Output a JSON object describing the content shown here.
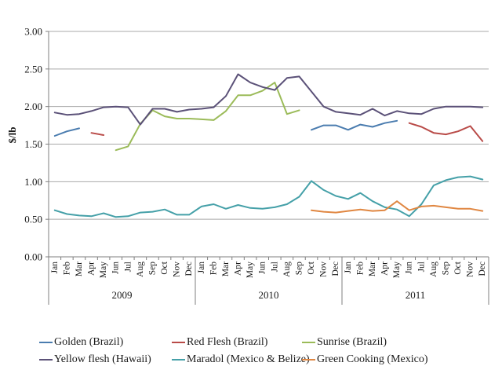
{
  "chart_data": {
    "type": "line",
    "title": "",
    "ylabel": "$/lb",
    "ylim": [
      0,
      3
    ],
    "ytick_step": 0.5,
    "ytick_labels": [
      "0.00",
      "0.50",
      "1.00",
      "1.50",
      "2.00",
      "2.50",
      "3.00"
    ],
    "grid": true,
    "legend_position": "bottom",
    "month_labels": [
      "Jan",
      "Feb",
      "Mar",
      "Apr",
      "May",
      "Jun",
      "Jul",
      "Aug",
      "Sep",
      "Oct",
      "Nov",
      "Dec",
      "Jan",
      "Feb",
      "Mar",
      "Apr",
      "May",
      "Jun",
      "Jul",
      "Aug",
      "Sep",
      "Oct",
      "Nov",
      "Dec",
      "Jan",
      "Feb",
      "Mar",
      "Apr",
      "May",
      "Jun",
      "Jul",
      "Aug",
      "Sep",
      "Oct",
      "Nov",
      "Dec"
    ],
    "year_groups": [
      {
        "label": "2009",
        "start": 0,
        "count": 12
      },
      {
        "label": "2010",
        "start": 12,
        "count": 12
      },
      {
        "label": "2011",
        "start": 24,
        "count": 12
      }
    ],
    "series": [
      {
        "name": "Golden (Brazil)",
        "color": "#4A7CAF",
        "values": [
          1.61,
          1.67,
          1.71,
          null,
          null,
          null,
          null,
          null,
          null,
          null,
          null,
          null,
          null,
          null,
          null,
          null,
          null,
          null,
          null,
          null,
          null,
          1.69,
          1.75,
          1.75,
          1.69,
          1.76,
          1.73,
          1.78,
          1.81,
          null,
          null,
          null,
          null,
          null,
          null,
          null
        ]
      },
      {
        "name": "Red Flesh (Brazil)",
        "color": "#B94B48",
        "values": [
          null,
          null,
          null,
          1.65,
          1.62,
          null,
          null,
          null,
          null,
          null,
          null,
          null,
          null,
          null,
          null,
          null,
          null,
          null,
          null,
          null,
          null,
          null,
          null,
          null,
          null,
          null,
          null,
          null,
          null,
          1.78,
          1.73,
          1.65,
          1.63,
          1.67,
          1.74,
          1.54
        ]
      },
      {
        "name": "Sunrise (Brazil)",
        "color": "#9BBB59",
        "values": [
          null,
          null,
          null,
          null,
          null,
          1.42,
          1.47,
          1.77,
          1.95,
          1.87,
          1.84,
          1.84,
          1.83,
          1.82,
          1.94,
          2.15,
          2.15,
          2.21,
          2.32,
          1.9,
          1.95,
          null,
          null,
          null,
          null,
          null,
          null,
          null,
          null,
          null,
          null,
          null,
          null,
          null,
          null,
          null
        ]
      },
      {
        "name": "Yellow flesh (Hawaii)",
        "color": "#5B5178",
        "values": [
          1.92,
          1.89,
          1.9,
          1.94,
          1.99,
          2.0,
          1.99,
          1.76,
          1.97,
          1.97,
          1.93,
          1.96,
          1.97,
          1.99,
          2.14,
          2.43,
          2.32,
          2.26,
          2.22,
          2.38,
          2.4,
          2.2,
          2.0,
          1.93,
          1.91,
          1.89,
          1.97,
          1.88,
          1.94,
          1.91,
          1.9,
          1.97,
          2.0,
          2.0,
          2.0,
          1.99
        ]
      },
      {
        "name": "Maradol (Mexico & Belize)",
        "color": "#45A0A8",
        "values": [
          0.62,
          0.57,
          0.55,
          0.54,
          0.58,
          0.53,
          0.54,
          0.59,
          0.6,
          0.63,
          0.56,
          0.56,
          0.67,
          0.7,
          0.64,
          0.69,
          0.65,
          0.64,
          0.66,
          0.7,
          0.8,
          1.01,
          0.89,
          0.81,
          0.77,
          0.85,
          0.74,
          0.66,
          0.63,
          0.54,
          0.7,
          0.95,
          1.02,
          1.06,
          1.07,
          1.03
        ]
      },
      {
        "name": "Green Cooking (Mexico)",
        "color": "#E08742",
        "values": [
          null,
          null,
          null,
          null,
          null,
          null,
          null,
          null,
          null,
          null,
          null,
          null,
          null,
          null,
          null,
          null,
          null,
          null,
          null,
          null,
          null,
          0.62,
          0.6,
          0.59,
          0.61,
          0.63,
          0.61,
          0.62,
          0.74,
          0.62,
          0.67,
          0.68,
          0.66,
          0.64,
          0.64,
          0.61
        ]
      }
    ],
    "axis_colors": {
      "gridline": "#A9A9A9",
      "axis": "#7F7F7F",
      "text": "#1A1A1A"
    }
  }
}
